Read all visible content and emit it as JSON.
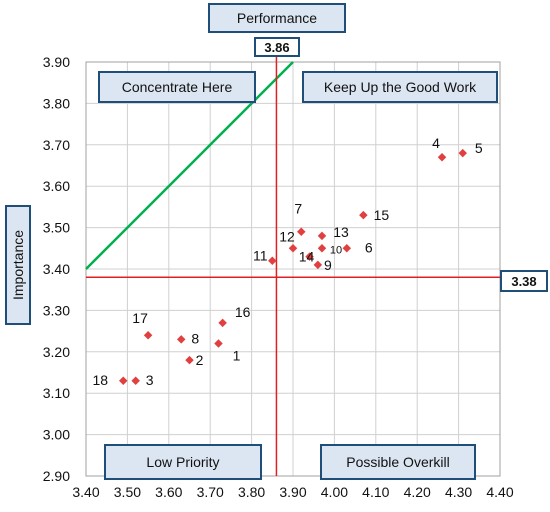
{
  "chart_data": {
    "type": "scatter",
    "title": "Performance",
    "xlabel": "Performance",
    "ylabel": "Importance",
    "xlim": [
      3.4,
      4.4
    ],
    "ylim": [
      2.9,
      3.9
    ],
    "x_ticks": [
      "3.40",
      "3.50",
      "3.60",
      "3.70",
      "3.80",
      "3.90",
      "4.00",
      "4.10",
      "4.20",
      "4.30",
      "4.40"
    ],
    "y_ticks": [
      "2.90",
      "3.00",
      "3.10",
      "3.20",
      "3.30",
      "3.40",
      "3.50",
      "3.60",
      "3.70",
      "3.80",
      "3.90"
    ],
    "grid": true,
    "reference_lines": {
      "x_mean": 3.86,
      "x_mean_label": "3.86",
      "y_mean": 3.38,
      "y_mean_label": "3.38"
    },
    "diagonal": {
      "from": [
        3.4,
        3.4
      ],
      "to": [
        3.9,
        3.9
      ],
      "color": "#00b050"
    },
    "quadrants": {
      "top_left": "Concentrate Here",
      "top_right": "Keep Up the Good Work",
      "bottom_left": "Low Priority",
      "bottom_right": "Possible Overkill"
    },
    "points": [
      {
        "label": "1",
        "x": 3.72,
        "y": 3.22
      },
      {
        "label": "2",
        "x": 3.65,
        "y": 3.18
      },
      {
        "label": "3",
        "x": 3.52,
        "y": 3.13
      },
      {
        "label": "4",
        "x": 4.26,
        "y": 3.67
      },
      {
        "label": "5",
        "x": 4.31,
        "y": 3.68
      },
      {
        "label": "6",
        "x": 4.03,
        "y": 3.45
      },
      {
        "label": "7",
        "x": 3.92,
        "y": 3.49
      },
      {
        "label": "8",
        "x": 3.63,
        "y": 3.23
      },
      {
        "label": "9",
        "x": 3.96,
        "y": 3.41
      },
      {
        "label": "10",
        "x": 3.97,
        "y": 3.45
      },
      {
        "label": "11",
        "x": 3.85,
        "y": 3.42
      },
      {
        "label": "12",
        "x": 3.9,
        "y": 3.45
      },
      {
        "label": "13",
        "x": 3.97,
        "y": 3.48
      },
      {
        "label": "14",
        "x": 3.94,
        "y": 3.43
      },
      {
        "label": "15",
        "x": 4.07,
        "y": 3.53
      },
      {
        "label": "16",
        "x": 3.73,
        "y": 3.27
      },
      {
        "label": "17",
        "x": 3.55,
        "y": 3.24
      },
      {
        "label": "18",
        "x": 3.49,
        "y": 3.13
      }
    ],
    "colors": {
      "points": "#e04040",
      "ref_lines": "#e02020",
      "diagonal": "#00b050",
      "box_border": "#1f4e79",
      "box_fill": "#dce6f2"
    }
  }
}
